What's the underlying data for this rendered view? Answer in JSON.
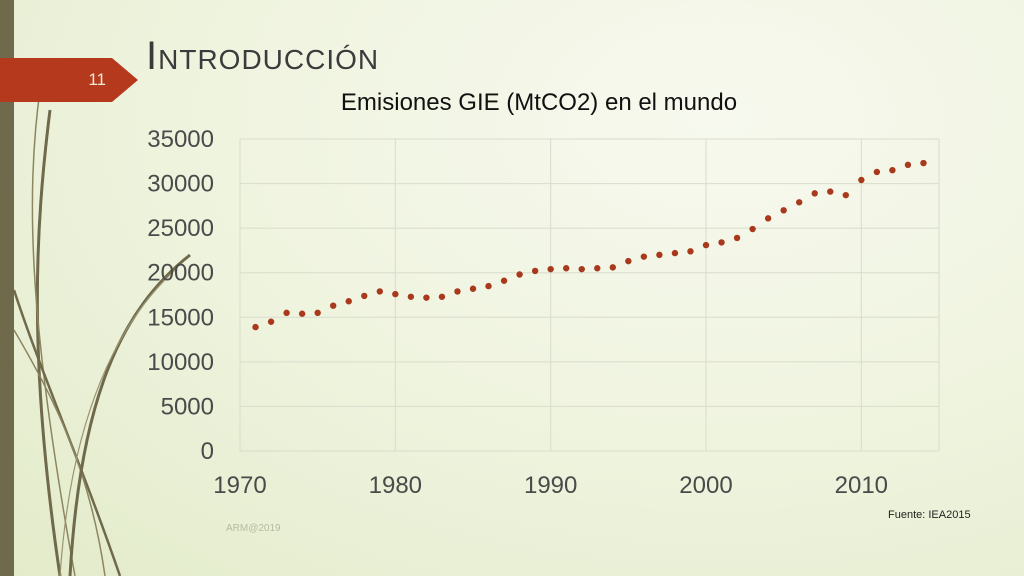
{
  "slide": {
    "number": "11",
    "title": "Introducción",
    "source": "Fuente: IEA2015",
    "footer": "ARM@2019",
    "accent_color": "#b5391d",
    "bar_color": "#6f6a4c"
  },
  "chart_data": {
    "type": "scatter",
    "title": "Emisiones GIE (MtCO2) en el mundo",
    "xlabel": "",
    "ylabel": "",
    "xlim": [
      1970,
      2015
    ],
    "ylim": [
      0,
      35000
    ],
    "xticks": [
      1970,
      1980,
      1990,
      2000,
      2010
    ],
    "yticks": [
      0,
      5000,
      10000,
      15000,
      20000,
      25000,
      30000,
      35000
    ],
    "grid": true,
    "marker_color": "#a8391c",
    "series": [
      {
        "x": [
          1971,
          1972,
          1973,
          1974,
          1975,
          1976,
          1977,
          1978,
          1979,
          1980,
          1981,
          1982,
          1983,
          1984,
          1985,
          1986,
          1987,
          1988,
          1989,
          1990,
          1991,
          1992,
          1993,
          1994,
          1995,
          1996,
          1997,
          1998,
          1999,
          2000,
          2001,
          2002,
          2003,
          2004,
          2005,
          2006,
          2007,
          2008,
          2009,
          2010,
          2011,
          2012,
          2013,
          2014
        ],
        "y": [
          13900,
          14500,
          15500,
          15400,
          15500,
          16300,
          16800,
          17400,
          17900,
          17600,
          17300,
          17200,
          17300,
          17900,
          18200,
          18500,
          19100,
          19800,
          20200,
          20400,
          20500,
          20400,
          20500,
          20600,
          21300,
          21800,
          22000,
          22200,
          22400,
          23100,
          23400,
          23900,
          24900,
          26100,
          27000,
          27900,
          28900,
          29100,
          28700,
          30400,
          31300,
          31500,
          32100,
          32300
        ]
      }
    ]
  }
}
